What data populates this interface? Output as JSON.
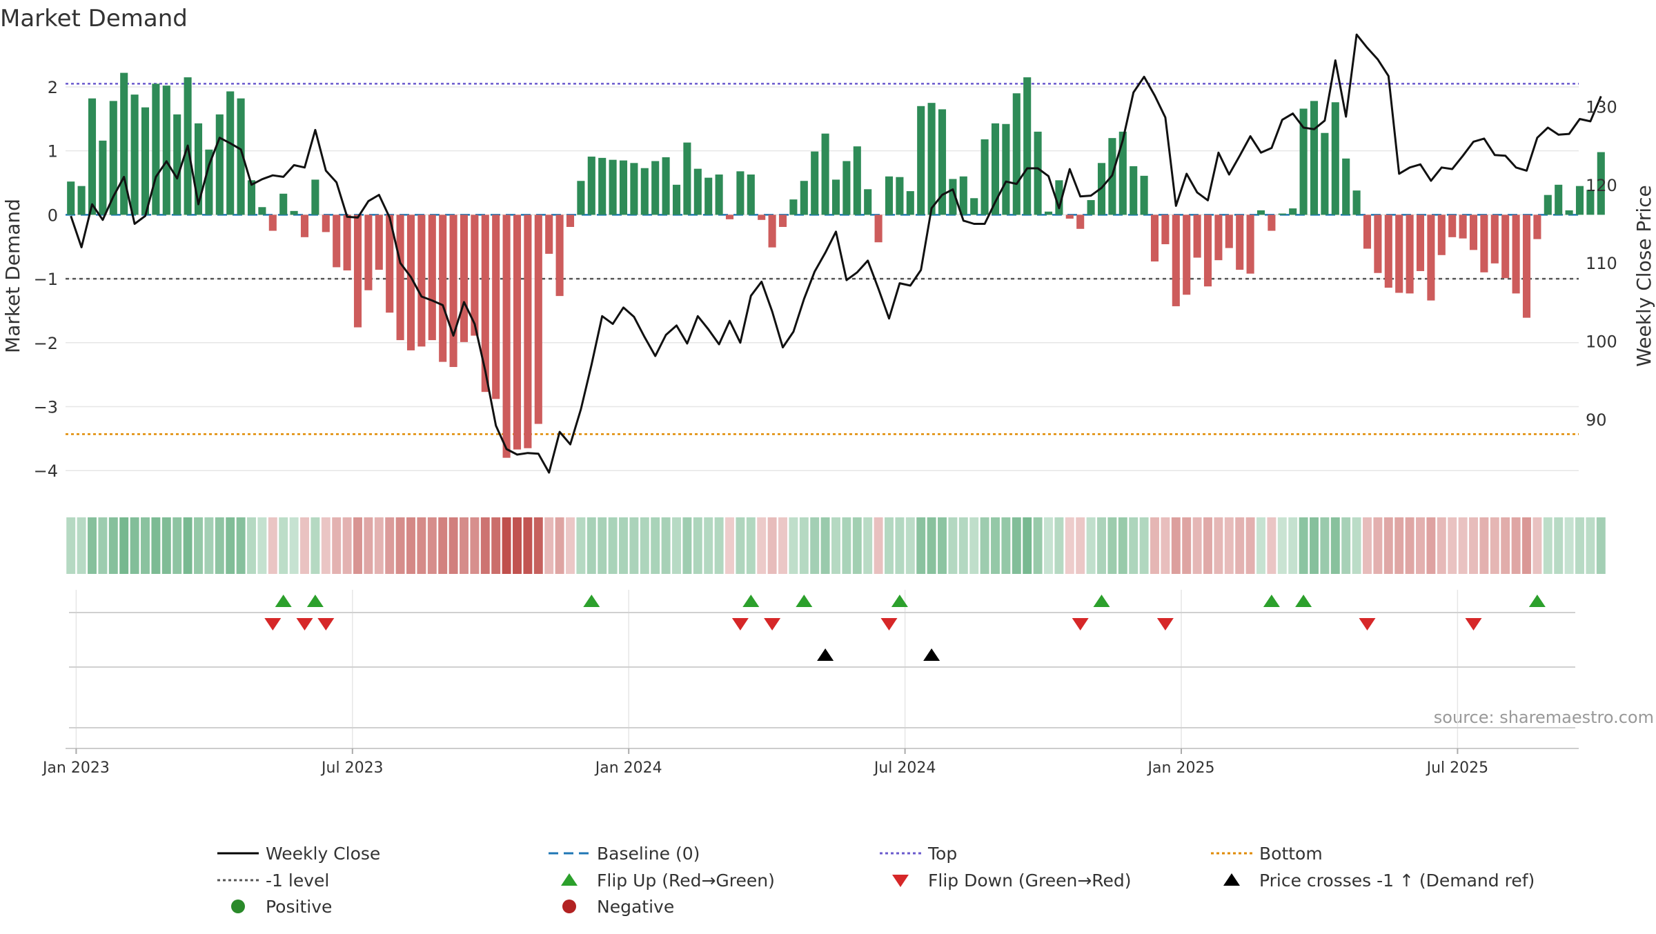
{
  "chart_data": {
    "type": "bar",
    "title": "Market Demand",
    "ylabel_left": "Market Demand",
    "ylabel_right": "Weekly Close Price",
    "ylim_left": [
      -4.3,
      2.55
    ],
    "ylim_right": [
      81,
      137
    ],
    "left_ticks": [
      "2",
      "1",
      "0",
      "−1",
      "−2",
      "−3",
      "−4"
    ],
    "left_tick_values": [
      2,
      1,
      0,
      -1,
      -2,
      -3,
      -4
    ],
    "right_ticks": [
      "130",
      "120",
      "110",
      "100",
      "90"
    ],
    "right_tick_values": [
      130,
      120,
      110,
      100,
      90
    ],
    "x_tick_labels": [
      "Jan 2023",
      "Jul 2023",
      "Jan 2024",
      "Jul 2024",
      "Jan 2025",
      "Jul 2025"
    ],
    "x_tick_weeks": [
      1,
      27,
      53,
      79,
      105,
      131
    ],
    "reference_lines": {
      "top": 2.05,
      "bottom": -3.43,
      "minus_one": -1,
      "baseline": 0
    },
    "demand": [
      0.52,
      0.45,
      1.82,
      1.16,
      1.78,
      2.22,
      1.88,
      1.68,
      2.05,
      2.02,
      1.57,
      2.15,
      1.43,
      1.02,
      1.57,
      1.93,
      1.82,
      0.54,
      0.12,
      -0.25,
      0.33,
      0.06,
      -0.35,
      0.55,
      -0.27,
      -0.82,
      -0.87,
      -1.76,
      -1.18,
      -0.86,
      -1.53,
      -1.96,
      -2.12,
      -2.06,
      -1.96,
      -2.3,
      -2.38,
      -1.99,
      -1.89,
      -2.77,
      -2.88,
      -3.8,
      -3.67,
      -3.65,
      -3.27,
      -0.61,
      -1.27,
      -0.19,
      0.53,
      0.91,
      0.89,
      0.86,
      0.85,
      0.81,
      0.73,
      0.84,
      0.9,
      0.47,
      1.13,
      0.72,
      0.58,
      0.63,
      -0.07,
      0.68,
      0.63,
      -0.08,
      -0.51,
      -0.19,
      0.24,
      0.53,
      0.99,
      1.27,
      0.55,
      0.84,
      1.07,
      0.4,
      -0.43,
      0.6,
      0.59,
      0.37,
      1.7,
      1.75,
      1.65,
      0.56,
      0.6,
      0.26,
      1.18,
      1.43,
      1.42,
      1.9,
      2.15,
      1.3,
      0.05,
      0.54,
      -0.06,
      -0.22,
      0.23,
      0.81,
      1.2,
      1.3,
      0.76,
      0.61,
      -0.73,
      -0.46,
      -1.43,
      -1.25,
      -0.67,
      -1.12,
      -0.71,
      -0.52,
      -0.86,
      -0.92,
      0.07,
      -0.25,
      0.02,
      0.1,
      1.66,
      1.78,
      1.28,
      1.76,
      0.88,
      0.38,
      -0.53,
      -0.91,
      -1.14,
      -1.22,
      -1.23,
      -0.88,
      -1.34,
      -0.63,
      -0.35,
      -0.37,
      -0.55,
      -0.9,
      -0.76,
      -0.99,
      -1.23,
      -1.61,
      -0.38,
      0.31,
      0.47,
      0.07,
      0.45,
      0.39,
      0.98
    ],
    "weekly_close": [
      116,
      112,
      117.5,
      115.5,
      118.5,
      121,
      115,
      116,
      121,
      123,
      120.8,
      125,
      117.5,
      122.5,
      126,
      125.3,
      124.5,
      120,
      120.7,
      121.2,
      121,
      122.5,
      122.2,
      127,
      121.8,
      120.3,
      115.9,
      115.8,
      117.9,
      118.7,
      115.8,
      110,
      108.2,
      105.7,
      105.2,
      104.6,
      100.7,
      105,
      102.2,
      96.2,
      89.2,
      86.2,
      85.5,
      85.7,
      85.6,
      83.2,
      88.4,
      86.8,
      91.3,
      97,
      103.2,
      102.2,
      104.3,
      103.1,
      100.5,
      98.1,
      100.8,
      102,
      99.7,
      103.2,
      101.5,
      99.6,
      102.6,
      99.8,
      105.8,
      107.6,
      103.8,
      99.2,
      101.2,
      105.4,
      108.9,
      111.3,
      114,
      107.8,
      108.8,
      110.3,
      106.7,
      102.9,
      107.4,
      107.1,
      109.1,
      117,
      118.7,
      119.4,
      115.4,
      115,
      115,
      117.8,
      120.4,
      120.1,
      122.1,
      122.1,
      121.1,
      117,
      122,
      118.5,
      118.6,
      119.6,
      121.2,
      125.7,
      131.8,
      133.8,
      131.4,
      128.6,
      117.3,
      121.4,
      119,
      118,
      124.1,
      121.3,
      123.7,
      126.2,
      124.1,
      124.7,
      128.3,
      129.1,
      127.3,
      127.1,
      128.2,
      135.9,
      128.7,
      139.2,
      137.5,
      136,
      133.9,
      121.4,
      122.2,
      122.6,
      120.5,
      122.2,
      122,
      123.7,
      125.5,
      125.9,
      123.8,
      123.7,
      122.2,
      121.8,
      126,
      127.3,
      126.4,
      126.5,
      128.4,
      128.1,
      131.3
    ],
    "flip_up_weeks": [
      20,
      23,
      49,
      64,
      69,
      78,
      97,
      113,
      116,
      138
    ],
    "flip_down_weeks": [
      19,
      22,
      24,
      63,
      66,
      77,
      95,
      103,
      122,
      132
    ],
    "cross_weeks": [
      71,
      81
    ],
    "source_text": "source: sharemaestro.com",
    "legend": [
      {
        "label": "Weekly Close",
        "symbol": "line",
        "color": "#000000"
      },
      {
        "label": "Baseline (0)",
        "symbol": "dash",
        "color": "#1f77b4"
      },
      {
        "label": "Top",
        "symbol": "dot",
        "color": "#6a5acd"
      },
      {
        "label": "Bottom",
        "symbol": "dot",
        "color": "#e08a00"
      },
      {
        "label": "-1 level",
        "symbol": "dot",
        "color": "#555555"
      },
      {
        "label": "Flip Up (Red→Green)",
        "symbol": "tri-up",
        "color": "#2ca02c"
      },
      {
        "label": "Flip Down (Green→Red)",
        "symbol": "tri-down",
        "color": "#d62728"
      },
      {
        "label": "Price crosses -1 ↑ (Demand ref)",
        "symbol": "tri-up",
        "color": "#000000"
      },
      {
        "label": "Positive",
        "symbol": "circle",
        "color": "#2a8a2a"
      },
      {
        "label": "Negative",
        "symbol": "circle",
        "color": "#b22222"
      }
    ],
    "colors": {
      "positive_bar": "#2e8b57",
      "negative_bar": "#cd5c5c",
      "price_line": "#111111",
      "flip_up": "#2ca02c",
      "flip_down": "#d62728",
      "cross": "#000000",
      "grid": "#e6e6e6"
    }
  }
}
